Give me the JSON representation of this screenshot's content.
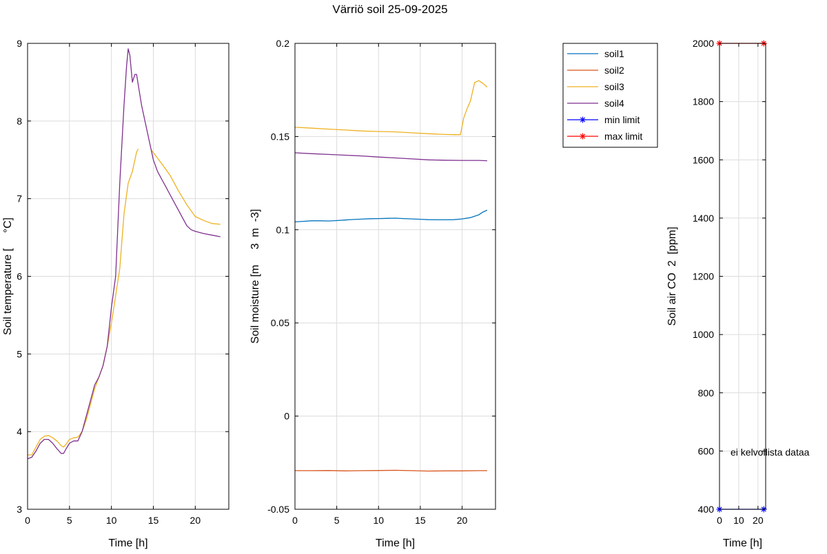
{
  "title": "Värriö soil 25-09-2025",
  "chart_data": [
    {
      "type": "line",
      "xlabel": "Time [h]",
      "ylabel": "Soil temperature [     °C]",
      "xlim": [
        0,
        24
      ],
      "ylim": [
        3,
        9
      ],
      "xticks": [
        0,
        5,
        10,
        15,
        20
      ],
      "yticks": [
        3,
        4,
        5,
        6,
        7,
        8,
        9
      ],
      "grid": true,
      "series": [
        {
          "color": "#EDB120",
          "x": [
            0,
            0.5,
            1,
            1.5,
            2,
            2.5,
            3,
            3.5,
            4,
            4.3,
            4.6,
            5,
            5.5,
            6,
            6.5,
            7,
            7.5,
            8,
            8.5,
            9,
            9.5,
            10,
            10.5,
            11,
            11.5,
            12,
            12.5,
            13,
            13.2
          ],
          "y": [
            3.7,
            3.7,
            3.8,
            3.9,
            3.94,
            3.95,
            3.92,
            3.88,
            3.82,
            3.8,
            3.84,
            3.9,
            3.92,
            3.93,
            4.0,
            4.15,
            4.35,
            4.55,
            4.7,
            4.85,
            5.1,
            5.4,
            5.75,
            6.1,
            6.8,
            7.2,
            7.35,
            7.6,
            7.64
          ]
        },
        {
          "color": "#EDB120",
          "x": [
            14.8,
            15.3,
            16,
            17,
            18,
            19,
            20,
            21,
            22,
            23
          ],
          "y": [
            7.62,
            7.55,
            7.45,
            7.3,
            7.1,
            6.92,
            6.77,
            6.72,
            6.68,
            6.67
          ]
        },
        {
          "color": "#7E2F8E",
          "x": [
            0,
            0.5,
            1,
            1.5,
            2,
            2.5,
            3,
            3.5,
            4,
            4.3,
            4.6,
            5,
            5.5,
            6,
            6.5,
            7,
            7.5,
            8,
            8.5,
            9,
            9.5,
            10,
            10.5,
            11,
            11.5,
            11.8,
            12,
            12.2,
            12.5,
            12.8,
            13,
            13.3,
            13.6,
            14,
            14.5,
            15,
            15.5,
            16,
            16.5,
            17,
            17.5,
            18,
            18.5,
            19,
            19.5,
            20,
            21,
            22,
            23
          ],
          "y": [
            3.65,
            3.67,
            3.75,
            3.85,
            3.9,
            3.9,
            3.85,
            3.78,
            3.72,
            3.72,
            3.78,
            3.85,
            3.88,
            3.88,
            4.0,
            4.2,
            4.4,
            4.6,
            4.7,
            4.85,
            5.1,
            5.6,
            6.0,
            7.2,
            8.2,
            8.7,
            8.93,
            8.85,
            8.5,
            8.6,
            8.6,
            8.4,
            8.2,
            8.0,
            7.75,
            7.5,
            7.35,
            7.25,
            7.15,
            7.05,
            6.95,
            6.85,
            6.75,
            6.65,
            6.6,
            6.58,
            6.55,
            6.53,
            6.51
          ]
        }
      ]
    },
    {
      "type": "line",
      "xlabel": "Time [h]",
      "ylabel": "Soil moisture [m     3  m  -3]",
      "xlim": [
        0,
        24
      ],
      "ylim": [
        -0.05,
        0.2
      ],
      "xticks": [
        0,
        5,
        10,
        15,
        20
      ],
      "yticks": [
        -0.05,
        0,
        0.05,
        0.1,
        0.15,
        0.2
      ],
      "grid": true,
      "series": [
        {
          "name": "soil1",
          "color": "#0072BD",
          "x": [
            0,
            1,
            2,
            3,
            4,
            5,
            6,
            7,
            8,
            9,
            10,
            11,
            12,
            13,
            14,
            15,
            16,
            17,
            18,
            19,
            20,
            21,
            22,
            22.5,
            23
          ],
          "y": [
            0.1042,
            0.1045,
            0.1048,
            0.1048,
            0.1047,
            0.1049,
            0.1052,
            0.1055,
            0.1057,
            0.1059,
            0.106,
            0.1061,
            0.1062,
            0.106,
            0.1058,
            0.1056,
            0.1054,
            0.1053,
            0.1053,
            0.1054,
            0.1058,
            0.1065,
            0.108,
            0.1095,
            0.1105
          ]
        },
        {
          "name": "soil2",
          "color": "#D95319",
          "x": [
            0,
            2,
            4,
            6,
            8,
            10,
            12,
            14,
            16,
            18,
            20,
            22,
            23
          ],
          "y": [
            -0.0293,
            -0.0293,
            -0.0292,
            -0.0294,
            -0.0293,
            -0.0292,
            -0.0291,
            -0.0293,
            -0.0295,
            -0.0294,
            -0.0294,
            -0.0293,
            -0.0293
          ]
        },
        {
          "name": "soil3",
          "color": "#EDB120",
          "x": [
            0,
            2,
            4,
            6,
            8,
            10,
            12,
            14,
            16,
            18,
            19,
            19.8,
            20.2,
            20.6,
            21,
            21.5,
            22,
            22.5,
            23
          ],
          "y": [
            0.155,
            0.1545,
            0.154,
            0.1535,
            0.153,
            0.1527,
            0.1525,
            0.152,
            0.1515,
            0.1511,
            0.151,
            0.151,
            0.16,
            0.165,
            0.169,
            0.179,
            0.18,
            0.1785,
            0.1765
          ]
        },
        {
          "name": "soil4",
          "color": "#7E2F8E",
          "x": [
            0,
            2,
            4,
            6,
            8,
            10,
            12,
            14,
            16,
            18,
            20,
            22,
            23
          ],
          "y": [
            0.1413,
            0.1408,
            0.1404,
            0.14,
            0.1396,
            0.139,
            0.1385,
            0.138,
            0.1375,
            0.1373,
            0.1372,
            0.1372,
            0.137
          ]
        }
      ]
    },
    {
      "type": "line",
      "xlabel": "Time [h]",
      "ylabel": "Soil air CO  2  [ppm]",
      "xlim": [
        0,
        24
      ],
      "ylim": [
        400,
        2000
      ],
      "xticks": [
        0,
        10,
        20
      ],
      "yticks": [
        400,
        600,
        800,
        1000,
        1200,
        1400,
        1600,
        1800,
        2000
      ],
      "grid": true,
      "annotation": "ei kelvollista dataa",
      "series": [
        {
          "name": "min limit",
          "color": "#0000FF",
          "marker": "asterisk",
          "x": [
            0,
            23
          ],
          "y": [
            400,
            400
          ]
        },
        {
          "name": "max limit",
          "color": "#FF0000",
          "marker": "asterisk",
          "x": [
            0,
            23
          ],
          "y": [
            2000,
            2000
          ]
        }
      ]
    }
  ],
  "legend": {
    "placement": "top-right",
    "entries": [
      {
        "label": "soil1",
        "color": "#0072BD",
        "marker": "none"
      },
      {
        "label": "soil2",
        "color": "#D95319",
        "marker": "none"
      },
      {
        "label": "soil3",
        "color": "#EDB120",
        "marker": "none"
      },
      {
        "label": "soil4",
        "color": "#7E2F8E",
        "marker": "none"
      },
      {
        "label": "min limit",
        "color": "#0000FF",
        "marker": "asterisk"
      },
      {
        "label": "max limit",
        "color": "#FF0000",
        "marker": "asterisk"
      }
    ]
  }
}
